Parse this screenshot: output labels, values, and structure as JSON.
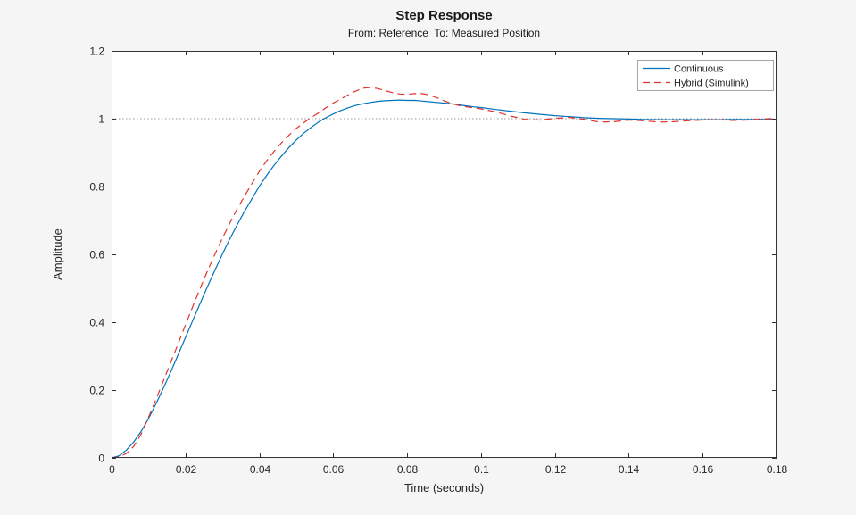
{
  "colors": {
    "figure_bg": "#f5f5f5",
    "axes_bg": "#ffffff",
    "axis": "#333333",
    "text": "#262626",
    "ref_line": "#999999",
    "legend_border": "#a6a6a6"
  },
  "chart_data": {
    "type": "line",
    "title": "Step Response",
    "subtitle": "From: Reference  To: Measured Position",
    "xlabel": "Time (seconds)",
    "ylabel": "Amplitude",
    "xlim": [
      0,
      0.18
    ],
    "ylim": [
      0,
      1.2
    ],
    "xticks": [
      0,
      0.02,
      0.04,
      0.06,
      0.08,
      0.1,
      0.12,
      0.14,
      0.16,
      0.18
    ],
    "xtick_labels": [
      "0",
      "0.02",
      "0.04",
      "0.06",
      "0.08",
      "0.1",
      "0.12",
      "0.14",
      "0.16",
      "0.18"
    ],
    "yticks": [
      0,
      0.2,
      0.4,
      0.6,
      0.8,
      1,
      1.2
    ],
    "ytick_labels": [
      "0",
      "0.2",
      "0.4",
      "0.6",
      "0.8",
      "1",
      "1.2"
    ],
    "grid": false,
    "legend_position": "top-right",
    "reference_line_y": 1,
    "x": [
      0,
      0.002,
      0.004,
      0.006,
      0.008,
      0.01,
      0.012,
      0.014,
      0.016,
      0.018,
      0.02,
      0.022,
      0.024,
      0.026,
      0.028,
      0.03,
      0.032,
      0.034,
      0.036,
      0.038,
      0.04,
      0.042,
      0.044,
      0.046,
      0.048,
      0.05,
      0.052,
      0.054,
      0.056,
      0.058,
      0.06,
      0.062,
      0.064,
      0.066,
      0.068,
      0.07,
      0.072,
      0.074,
      0.076,
      0.078,
      0.08,
      0.082,
      0.084,
      0.086,
      0.088,
      0.09,
      0.092,
      0.094,
      0.096,
      0.098,
      0.1,
      0.104,
      0.108,
      0.112,
      0.116,
      0.12,
      0.124,
      0.128,
      0.132,
      0.136,
      0.14,
      0.144,
      0.148,
      0.152,
      0.156,
      0.16,
      0.164,
      0.168,
      0.172,
      0.176,
      0.18
    ],
    "series": [
      {
        "name": "Continuous",
        "color": "#0072BD",
        "dash": null,
        "values": [
          0,
          0.006,
          0.023,
          0.047,
          0.078,
          0.116,
          0.159,
          0.205,
          0.253,
          0.304,
          0.355,
          0.406,
          0.456,
          0.506,
          0.554,
          0.601,
          0.645,
          0.687,
          0.727,
          0.764,
          0.801,
          0.833,
          0.863,
          0.89,
          0.915,
          0.937,
          0.957,
          0.974,
          0.99,
          1.003,
          1.014,
          1.024,
          1.032,
          1.039,
          1.044,
          1.048,
          1.051,
          1.053,
          1.054,
          1.055,
          1.054,
          1.054,
          1.052,
          1.05,
          1.048,
          1.046,
          1.044,
          1.041,
          1.038,
          1.035,
          1.033,
          1.027,
          1.022,
          1.017,
          1.013,
          1.009,
          1.006,
          1.003,
          1.001,
          1.0,
          0.999,
          0.998,
          0.997,
          0.997,
          0.997,
          0.997,
          0.997,
          0.998,
          0.998,
          0.998,
          0.998
        ]
      },
      {
        "name": "Hybrid (Simulink)",
        "color": "#E0322B",
        "dash": "8 5",
        "values": [
          0,
          0.003,
          0.013,
          0.034,
          0.07,
          0.12,
          0.172,
          0.226,
          0.281,
          0.336,
          0.392,
          0.447,
          0.5,
          0.552,
          0.601,
          0.648,
          0.692,
          0.734,
          0.772,
          0.809,
          0.845,
          0.876,
          0.904,
          0.929,
          0.951,
          0.971,
          0.988,
          1.003,
          1.017,
          1.032,
          1.046,
          1.058,
          1.07,
          1.081,
          1.09,
          1.092,
          1.089,
          1.083,
          1.077,
          1.073,
          1.072,
          1.074,
          1.074,
          1.07,
          1.062,
          1.053,
          1.045,
          1.039,
          1.035,
          1.032,
          1.029,
          1.02,
          1.008,
          0.998,
          0.996,
          1.001,
          1.004,
          0.998,
          0.99,
          0.991,
          0.996,
          0.994,
          0.99,
          0.991,
          0.994,
          0.996,
          0.997,
          0.995,
          0.996,
          0.999,
          1.001
        ]
      }
    ]
  }
}
